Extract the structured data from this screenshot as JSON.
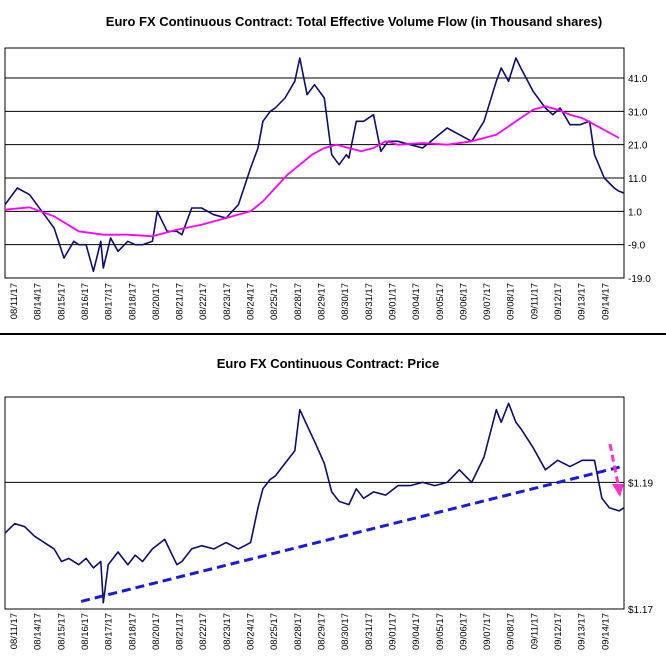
{
  "chart_data": [
    {
      "type": "line",
      "title": "Euro FX Continuous Contract: Total Effective Volume Flow (in Thousand shares)",
      "xlabel": "",
      "ylabel": "",
      "y_ticks": [
        "41.0",
        "31.0",
        "21.0",
        "11.0",
        "1.0",
        "-9.0",
        "-19.0"
      ],
      "ylim": [
        -19,
        50
      ],
      "x_tick_labels": [
        "08/11/17",
        "08/14/17",
        "08/15/17",
        "08/16/17",
        "08/17/17",
        "08/18/17",
        "08/20/17",
        "08/21/17",
        "08/22/17",
        "08/23/17",
        "08/24/17",
        "08/25/17",
        "08/28/17",
        "08/29/17",
        "08/30/17",
        "08/31/17",
        "09/01/17",
        "09/04/17",
        "09/05/17",
        "09/06/17",
        "09/07/17",
        "09/08/17",
        "09/11/17",
        "09/12/17",
        "09/13/17",
        "09/14/17"
      ],
      "grid": "horizontal",
      "series": [
        {
          "color": "#0d0d6e",
          "x": [
            0,
            0.5,
            1,
            1.5,
            1.8,
            2,
            2.4,
            2.8,
            3,
            3.3,
            3.6,
            3.9,
            4,
            4.3,
            4.6,
            5,
            5.3,
            5.6,
            6,
            6.2,
            6.6,
            7,
            7.2,
            7.6,
            8,
            8.5,
            9,
            9.5,
            10,
            10.3,
            10.5,
            10.8,
            11,
            11.4,
            11.8,
            12,
            12.3,
            12.6,
            13,
            13.3,
            13.6,
            13.9,
            14,
            14.3,
            14.6,
            15,
            15.3,
            15.6,
            16,
            16.5,
            17,
            17.5,
            18,
            18.5,
            19,
            19.5,
            20,
            20.2,
            20.5,
            20.8,
            21,
            21.5,
            22,
            22.3,
            22.6,
            23,
            23.4,
            23.8,
            24,
            24.4,
            24.8,
            25,
            25.2
          ],
          "values": [
            3,
            8,
            6,
            1,
            -2,
            -4,
            -13,
            -8,
            -9,
            -9,
            -17,
            -8,
            -16,
            -7,
            -11,
            -8,
            -9,
            -9,
            -8,
            1,
            -5,
            -5,
            -6,
            2,
            2,
            0,
            -1,
            3,
            14,
            20,
            28,
            31,
            32,
            35,
            40,
            47,
            36,
            39,
            35,
            18,
            15,
            18,
            17,
            28,
            28,
            30,
            19,
            22,
            22,
            21,
            20,
            23,
            26,
            24,
            22,
            28,
            40,
            44,
            40,
            47,
            44,
            37,
            32,
            30,
            32,
            27,
            27,
            28,
            18,
            11,
            8,
            7,
            6.5
          ]
        },
        {
          "color": "#ff00ff",
          "x": [
            0,
            1,
            2,
            3,
            4,
            5,
            6,
            7,
            8,
            9,
            10,
            10.5,
            11,
            11.5,
            12,
            12.5,
            13,
            13.5,
            14,
            14.5,
            15,
            15.5,
            16,
            17,
            18,
            19,
            20,
            21,
            21.5,
            22,
            22.5,
            23,
            23.5,
            24,
            25
          ],
          "values": [
            1.5,
            2.2,
            -0.5,
            -5,
            -6,
            -6,
            -6.5,
            -4.5,
            -3,
            -1,
            1,
            4,
            8,
            12,
            15,
            18,
            20,
            21,
            20,
            19,
            20,
            22,
            21,
            21.5,
            21,
            22,
            24,
            29,
            31.5,
            32.5,
            31.5,
            30,
            29,
            27,
            23
          ]
        }
      ]
    },
    {
      "type": "line",
      "title": "Euro FX Continuous Contract: Price",
      "xlabel": "",
      "ylabel": "",
      "y_ticks": [
        "$1.19",
        "$1.17"
      ],
      "ylim": [
        1.17,
        1.2035
      ],
      "x_tick_labels": [
        "08/11/17",
        "08/14/17",
        "08/15/17",
        "08/16/17",
        "08/17/17",
        "08/18/17",
        "08/20/17",
        "08/21/17",
        "08/22/17",
        "08/23/17",
        "08/24/17",
        "08/25/17",
        "08/28/17",
        "08/29/17",
        "08/30/17",
        "08/31/17",
        "09/01/17",
        "09/04/17",
        "09/05/17",
        "09/06/17",
        "09/07/17",
        "09/08/17",
        "09/11/17",
        "09/12/17",
        "09/13/17",
        "09/14/17"
      ],
      "grid": "horizontal",
      "series": [
        {
          "color": "#0d0d6e",
          "x": [
            0,
            0.4,
            0.8,
            1.2,
            1.6,
            2,
            2.3,
            2.6,
            3,
            3.3,
            3.6,
            3.9,
            4,
            4.2,
            4.6,
            5,
            5.3,
            5.6,
            6,
            6.5,
            7,
            7.2,
            7.6,
            8,
            8.5,
            9,
            9.5,
            10,
            10.3,
            10.5,
            10.8,
            11,
            11.4,
            11.8,
            12,
            12.3,
            12.6,
            13,
            13.3,
            13.6,
            14,
            14.3,
            14.6,
            15,
            15.5,
            16,
            16.5,
            17,
            17.5,
            18,
            18.5,
            19,
            19.5,
            20,
            20.2,
            20.5,
            20.8,
            21,
            21.5,
            22,
            22.5,
            23,
            23.5,
            24,
            24.3,
            24.6,
            25,
            25.2
          ],
          "values": [
            1.182,
            1.1835,
            1.183,
            1.1815,
            1.1805,
            1.1795,
            1.1775,
            1.178,
            1.177,
            1.178,
            1.1765,
            1.1775,
            1.171,
            1.177,
            1.179,
            1.177,
            1.1785,
            1.1775,
            1.1795,
            1.181,
            1.177,
            1.1775,
            1.1795,
            1.18,
            1.1795,
            1.1805,
            1.1795,
            1.1805,
            1.186,
            1.189,
            1.1905,
            1.191,
            1.193,
            1.195,
            1.2015,
            1.199,
            1.1965,
            1.193,
            1.1885,
            1.187,
            1.1865,
            1.189,
            1.1875,
            1.1885,
            1.188,
            1.1895,
            1.1895,
            1.19,
            1.1895,
            1.19,
            1.192,
            1.19,
            1.194,
            1.2015,
            1.1995,
            1.2025,
            1.1995,
            1.1985,
            1.1955,
            1.192,
            1.1935,
            1.1925,
            1.1935,
            1.1935,
            1.1875,
            1.186,
            1.1855,
            1.186
          ]
        }
      ]
    }
  ]
}
